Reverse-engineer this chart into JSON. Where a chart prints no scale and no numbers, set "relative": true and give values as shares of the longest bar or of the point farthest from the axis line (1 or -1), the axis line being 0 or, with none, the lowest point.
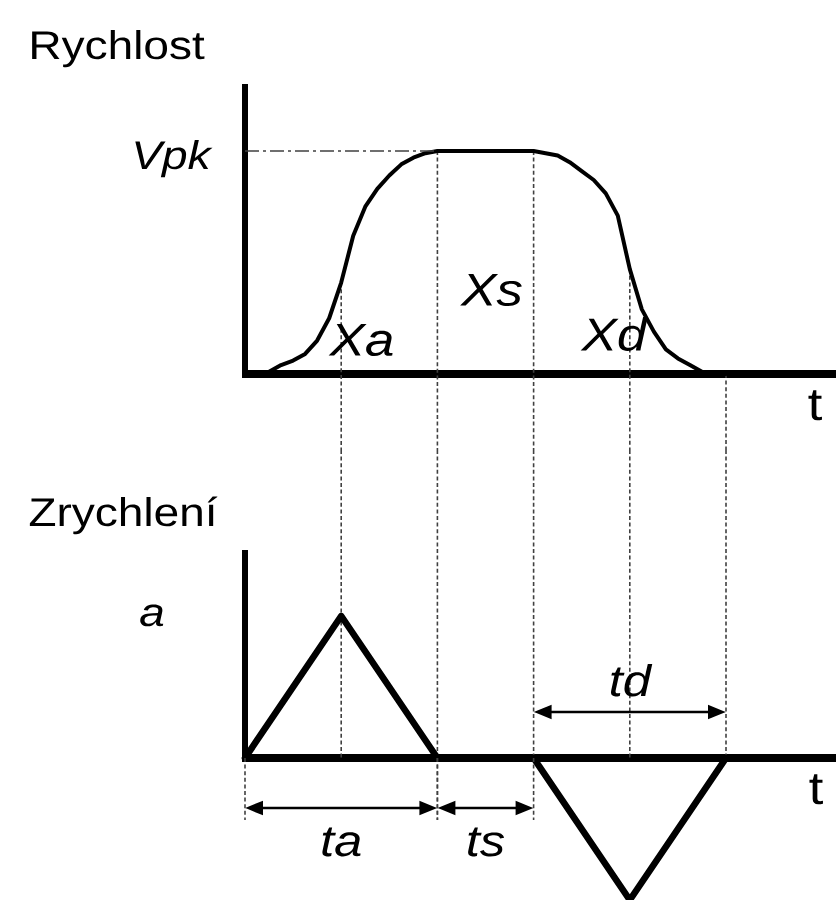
{
  "chart_data": [
    {
      "type": "line",
      "ylabel": "Rychlost",
      "xlabel": "t",
      "relative": true,
      "categories": [
        null,
        null,
        null,
        null,
        null,
        null,
        null,
        null,
        null,
        null,
        null,
        null,
        null,
        null,
        null,
        null,
        null,
        null,
        null,
        null,
        null,
        null,
        null,
        null,
        null,
        null,
        null,
        null,
        null,
        null,
        null,
        null,
        null,
        null,
        null,
        null,
        null,
        null,
        null,
        null,
        null
      ],
      "values": [
        0,
        0,
        0.01,
        0.04,
        0.06,
        0.09,
        0.15,
        0.25,
        0.41,
        0.62,
        0.75,
        0.83,
        0.89,
        0.94,
        0.97,
        0.99,
        1,
        1,
        1,
        1,
        1,
        1,
        1,
        1,
        1,
        0.99,
        0.98,
        0.95,
        0.91,
        0.87,
        0.81,
        0.71,
        0.47,
        0.29,
        0.19,
        0.11,
        0.07,
        0.04,
        0.01,
        0,
        0
      ],
      "color": "#000000",
      "grid": "x",
      "ref_lines": [
        {
          "axis": "y",
          "value": 1,
          "label": "Vpk",
          "line_style": "dashdot",
          "color": "#404040"
        }
      ],
      "annotations": [
        "Xa",
        "Xs",
        "Xd"
      ]
    },
    {
      "type": "line",
      "ylabel": "Zrychlení",
      "xlabel": "t",
      "relative": true,
      "categories": [
        null,
        null,
        null,
        null,
        null,
        null
      ],
      "values": [
        0,
        1,
        0,
        0,
        -1,
        0
      ],
      "color": "#000000",
      "grid": "x",
      "annotations": [
        "a",
        "ta",
        "ts",
        "td"
      ]
    }
  ]
}
